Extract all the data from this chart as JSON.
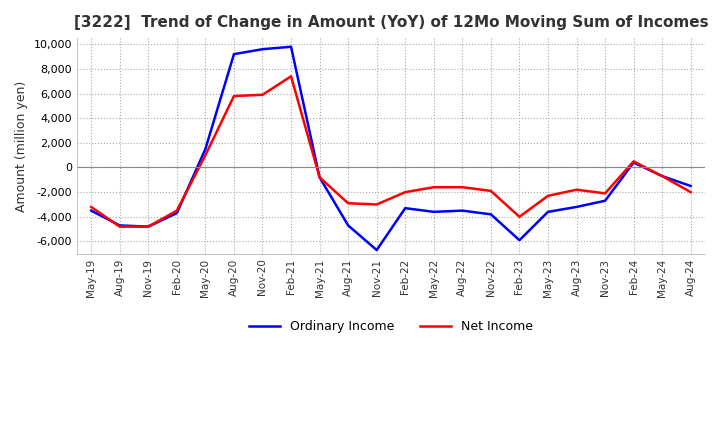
{
  "title": "[3222]  Trend of Change in Amount (YoY) of 12Mo Moving Sum of Incomes",
  "ylabel": "Amount (million yen)",
  "ylim": [
    -7000,
    10500
  ],
  "yticks": [
    -6000,
    -4000,
    -2000,
    0,
    2000,
    4000,
    6000,
    8000,
    10000
  ],
  "x_labels": [
    "May-19",
    "Aug-19",
    "Nov-19",
    "Feb-20",
    "May-20",
    "Aug-20",
    "Nov-20",
    "Feb-21",
    "May-21",
    "Aug-21",
    "Nov-21",
    "Feb-22",
    "May-22",
    "Aug-22",
    "Nov-22",
    "Feb-23",
    "May-23",
    "Aug-23",
    "Nov-23",
    "Feb-24",
    "May-24",
    "Aug-24"
  ],
  "ordinary_income": [
    -3500,
    -4700,
    -4800,
    -3700,
    1500,
    9200,
    9600,
    9800,
    -800,
    -4700,
    -6700,
    -3300,
    -3600,
    -3500,
    -3800,
    -5900,
    -3600,
    -3200,
    -2700,
    400,
    -700,
    -1500
  ],
  "net_income": [
    -3200,
    -4800,
    -4800,
    -3500,
    1000,
    5800,
    5900,
    7400,
    -800,
    -2900,
    -3000,
    -2000,
    -1600,
    -1600,
    -1900,
    -4000,
    -2300,
    -1800,
    -2100,
    500,
    -700,
    -2000
  ],
  "ordinary_color": "#0000FF",
  "net_color": "#FF0000",
  "background_color": "#FFFFFF",
  "grid_color": "#AAAAAA",
  "zero_line_color": "#888888",
  "title_color": "#333333"
}
